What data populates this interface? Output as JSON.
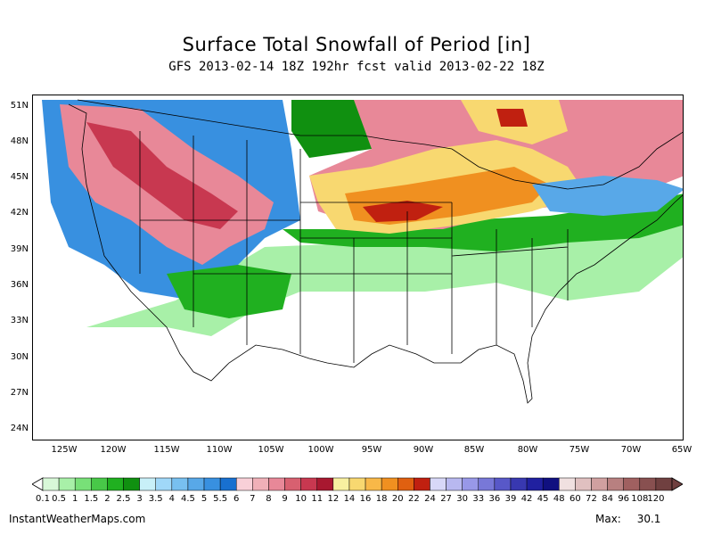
{
  "title": "Surface Total Snowfall of Period [in]",
  "subtitle": "GFS 2013-02-14 18Z 192hr fcst valid 2013-02-22 18Z",
  "lat_labels": [
    "51N",
    "48N",
    "45N",
    "42N",
    "39N",
    "36N",
    "33N",
    "30N",
    "27N",
    "24N"
  ],
  "lon_labels": [
    "125W",
    "120W",
    "115W",
    "110W",
    "105W",
    "100W",
    "95W",
    "90W",
    "85W",
    "80W",
    "75W",
    "70W",
    "65W"
  ],
  "colorbar": {
    "labels": [
      "0.1",
      "0.5",
      "1",
      "1.5",
      "2",
      "2.5",
      "3",
      "3.5",
      "4",
      "4.5",
      "5",
      "5.5",
      "6",
      "7",
      "8",
      "9",
      "10",
      "11",
      "12",
      "14",
      "16",
      "18",
      "20",
      "22",
      "24",
      "27",
      "30",
      "33",
      "36",
      "39",
      "42",
      "45",
      "48",
      "60",
      "72",
      "84",
      "96",
      "108",
      "120"
    ],
    "colors": [
      "#d8f8d8",
      "#a8f0a8",
      "#78e078",
      "#48c848",
      "#20b020",
      "#109010",
      "#c8f0f8",
      "#a0d8f8",
      "#78c0f0",
      "#58a8e8",
      "#3890e0",
      "#1870d0",
      "#f8d0d8",
      "#f0b0b8",
      "#e88898",
      "#d86070",
      "#c83850",
      "#a81830",
      "#f8f0a0",
      "#f8d870",
      "#f8b848",
      "#f09020",
      "#e06010",
      "#c02010",
      "#d8d8f8",
      "#b8b8f0",
      "#9898e8",
      "#7878d8",
      "#5858c8",
      "#3838b0",
      "#2020a0",
      "#101080",
      "#f0e0e0",
      "#e0c0c0",
      "#d0a0a0",
      "#b88080",
      "#a06060",
      "#885050",
      "#704040"
    ]
  },
  "footer": {
    "source": "InstantWeatherMaps.com",
    "max_label": "Max:",
    "max_value": "30.1"
  }
}
